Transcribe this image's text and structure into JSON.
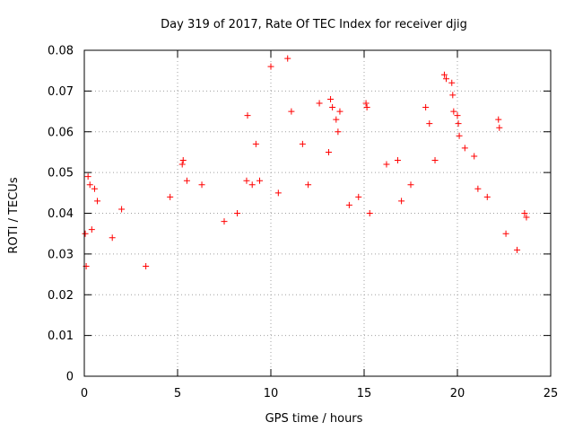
{
  "chart_data": {
    "type": "scatter",
    "title": "Day 319 of 2017, Rate Of TEC Index for receiver djig",
    "xlabel": "GPS time / hours",
    "ylabel": "ROTI / TECUs",
    "xlim": [
      0,
      25
    ],
    "ylim": [
      0,
      0.08
    ],
    "xticks": [
      0,
      5,
      10,
      15,
      20,
      25
    ],
    "yticks": [
      0,
      0.01,
      0.02,
      0.03,
      0.04,
      0.05,
      0.06,
      0.07,
      0.08
    ],
    "xtick_labels": [
      "0",
      "5",
      "10",
      "15",
      "20",
      "25"
    ],
    "ytick_labels": [
      "0",
      "0.01",
      "0.02",
      "0.03",
      "0.04",
      "0.05",
      "0.06",
      "0.07",
      "0.08"
    ],
    "grid": true,
    "marker": "+",
    "color": "#ff0000",
    "series": [
      {
        "name": "ROTI",
        "x": [
          0.05,
          0.1,
          0.2,
          0.3,
          0.4,
          0.55,
          0.7,
          1.5,
          2.0,
          3.3,
          4.6,
          5.25,
          5.3,
          5.5,
          6.3,
          7.5,
          8.2,
          8.7,
          8.75,
          9.0,
          9.2,
          9.4,
          10.0,
          10.4,
          10.9,
          11.1,
          11.7,
          12.0,
          12.6,
          13.1,
          13.2,
          13.3,
          13.5,
          13.6,
          13.7,
          14.2,
          14.7,
          15.1,
          15.15,
          15.3,
          16.2,
          16.8,
          17.0,
          17.5,
          18.3,
          18.5,
          18.8,
          19.3,
          19.4,
          19.7,
          19.75,
          19.8,
          20.0,
          20.05,
          20.1,
          20.4,
          20.9,
          21.1,
          21.6,
          22.2,
          22.25,
          22.6,
          23.2,
          23.6,
          23.7
        ],
        "y": [
          0.035,
          0.027,
          0.049,
          0.047,
          0.036,
          0.046,
          0.043,
          0.034,
          0.041,
          0.027,
          0.044,
          0.052,
          0.053,
          0.048,
          0.047,
          0.038,
          0.04,
          0.048,
          0.064,
          0.047,
          0.057,
          0.048,
          0.076,
          0.045,
          0.078,
          0.065,
          0.057,
          0.047,
          0.067,
          0.055,
          0.068,
          0.066,
          0.063,
          0.06,
          0.065,
          0.042,
          0.044,
          0.067,
          0.066,
          0.04,
          0.052,
          0.053,
          0.043,
          0.047,
          0.066,
          0.062,
          0.053,
          0.074,
          0.073,
          0.072,
          0.069,
          0.065,
          0.064,
          0.062,
          0.059,
          0.056,
          0.054,
          0.046,
          0.044,
          0.063,
          0.061,
          0.035,
          0.031,
          0.04,
          0.039
        ]
      }
    ]
  }
}
